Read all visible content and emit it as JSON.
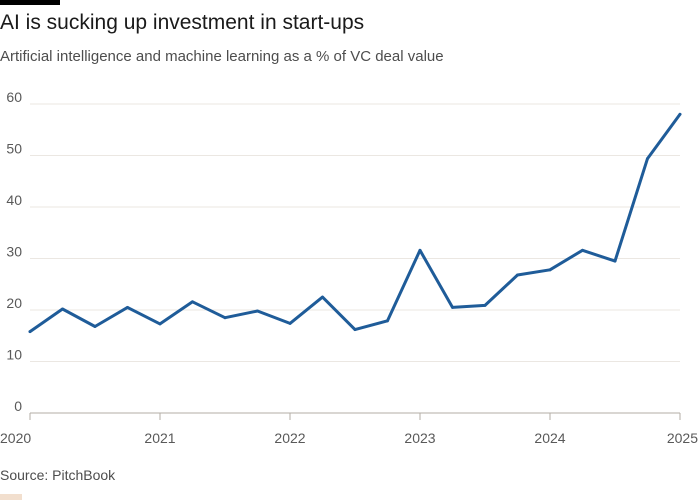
{
  "header": {
    "title": "AI is sucking up investment in start-ups",
    "subtitle": "Artificial intelligence and machine learning as a % of VC deal value"
  },
  "footer": {
    "source": "Source: PitchBook"
  },
  "colors": {
    "line": "#1f5c99",
    "accent_bar": "#000000",
    "grid": "#ebe7e2",
    "text": "#1a1a1a",
    "muted_text": "#4d4d4d"
  },
  "chart_data": {
    "type": "line",
    "title": "AI is sucking up investment in start-ups",
    "subtitle": "Artificial intelligence and machine learning as a % of VC deal value",
    "xlabel": "",
    "ylabel": "",
    "x_tick_labels": [
      "2020",
      "2021",
      "2022",
      "2023",
      "2024",
      "2025"
    ],
    "y_tick_labels": [
      "0",
      "10",
      "20",
      "30",
      "40",
      "50",
      "60"
    ],
    "ylim": [
      0,
      60
    ],
    "xlim": [
      "2020 Q1",
      "2025 Q1"
    ],
    "grid": true,
    "legend": "none",
    "x": [
      "2020 Q1",
      "2020 Q2",
      "2020 Q3",
      "2020 Q4",
      "2021 Q1",
      "2021 Q2",
      "2021 Q3",
      "2021 Q4",
      "2022 Q1",
      "2022 Q2",
      "2022 Q3",
      "2022 Q4",
      "2023 Q1",
      "2023 Q2",
      "2023 Q3",
      "2023 Q4",
      "2024 Q1",
      "2024 Q2",
      "2024 Q3",
      "2024 Q4",
      "2025 Q1"
    ],
    "series": [
      {
        "values": [
          15.8,
          20.2,
          16.8,
          20.5,
          17.3,
          21.6,
          18.5,
          19.8,
          17.4,
          22.5,
          16.2,
          17.9,
          31.6,
          20.5,
          20.9,
          26.8,
          27.8,
          31.6,
          29.5,
          49.4,
          58.0
        ]
      }
    ],
    "source": "Source: PitchBook"
  }
}
